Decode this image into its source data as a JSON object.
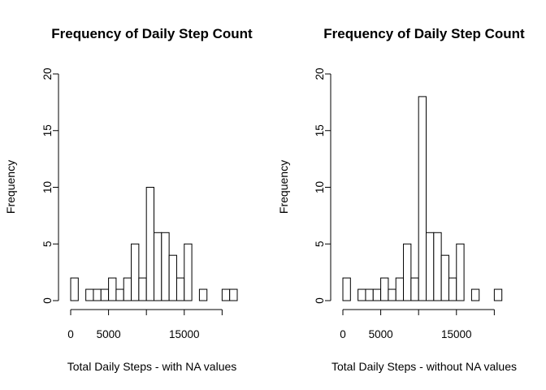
{
  "chart_data": [
    {
      "type": "bar",
      "title": "Frequency of Daily Step Count",
      "xlabel": "Total Daily Steps - with NA values",
      "ylabel": "Frequency",
      "bin_width": 1000,
      "bin_start": 0,
      "values": [
        2,
        0,
        1,
        1,
        1,
        2,
        1,
        2,
        5,
        2,
        10,
        6,
        6,
        4,
        2,
        5,
        0,
        1,
        0,
        0,
        1,
        1
      ],
      "xlim": [
        0,
        22000
      ],
      "ylim": [
        0,
        20
      ],
      "x_ticks": [
        0,
        5000,
        15000
      ],
      "x_tick_labels": [
        "0",
        "5000",
        "15000"
      ],
      "x_axis_end": 20000,
      "y_ticks": [
        0,
        5,
        10,
        15,
        20
      ],
      "y_tick_labels": [
        "0",
        "5",
        "10",
        "15",
        "20"
      ],
      "grid": false
    },
    {
      "type": "bar",
      "title": "Frequency of Daily Step Count",
      "xlabel": "Total Daily Steps - without NA values",
      "ylabel": "Frequency",
      "bin_width": 1000,
      "bin_start": 0,
      "values": [
        2,
        0,
        1,
        1,
        1,
        2,
        1,
        2,
        5,
        2,
        18,
        6,
        6,
        4,
        2,
        5,
        0,
        1,
        0,
        0,
        1
      ],
      "xlim": [
        0,
        22000
      ],
      "ylim": [
        0,
        20
      ],
      "x_ticks": [
        0,
        5000,
        15000
      ],
      "x_tick_labels": [
        "0",
        "5000",
        "15000"
      ],
      "x_axis_end": 20000,
      "y_ticks": [
        0,
        5,
        10,
        15,
        20
      ],
      "y_tick_labels": [
        "0",
        "5",
        "10",
        "15",
        "20"
      ],
      "grid": false
    }
  ]
}
